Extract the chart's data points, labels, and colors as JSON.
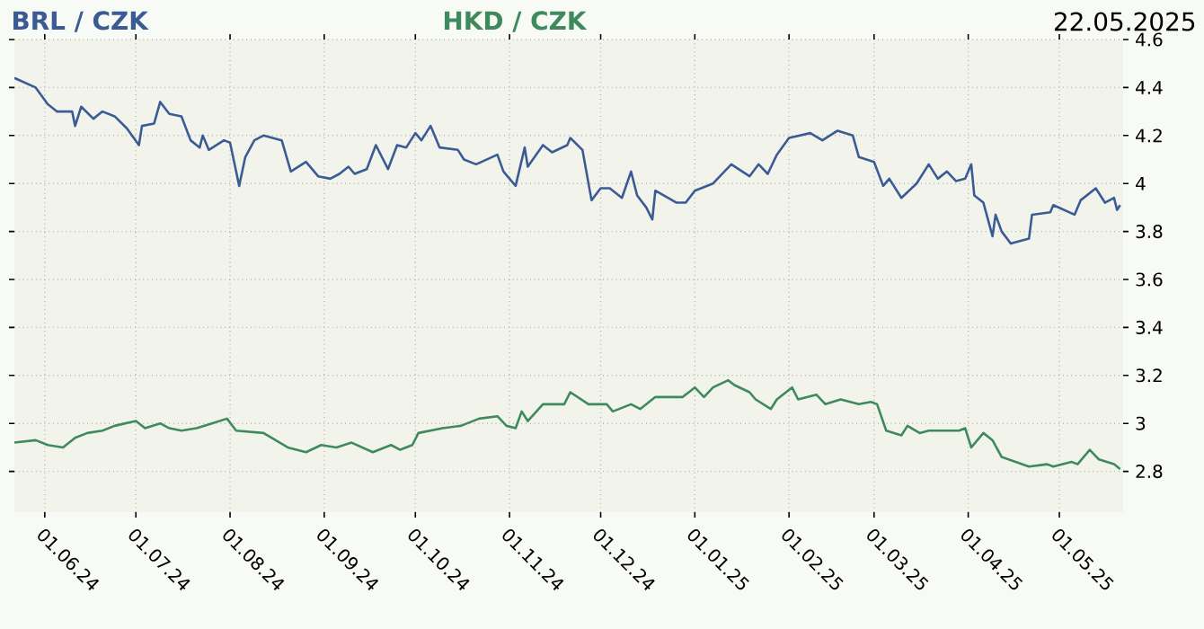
{
  "chart_data": {
    "type": "line",
    "annotations": [
      "22.05.2025"
    ],
    "legend": "top",
    "grid": true,
    "ylim": [
      2.63,
      4.6
    ],
    "yticks": [
      2.8,
      3,
      3.2,
      3.4,
      3.6,
      3.8,
      4,
      4.2,
      4.4,
      4.6
    ],
    "xlim": [
      "2024-05-22",
      "2025-05-22"
    ],
    "xticks": [
      {
        "value": "2024-06-01",
        "label": "01.06.24"
      },
      {
        "value": "2024-07-01",
        "label": "01.07.24"
      },
      {
        "value": "2024-08-01",
        "label": "01.08.24"
      },
      {
        "value": "2024-09-01",
        "label": "01.09.24"
      },
      {
        "value": "2024-10-01",
        "label": "01.10.24"
      },
      {
        "value": "2024-11-01",
        "label": "01.11.24"
      },
      {
        "value": "2024-12-01",
        "label": "01.12.24"
      },
      {
        "value": "2025-01-01",
        "label": "01.01.25"
      },
      {
        "value": "2025-02-01",
        "label": "01.02.25"
      },
      {
        "value": "2025-03-01",
        "label": "01.03.25"
      },
      {
        "value": "2025-04-01",
        "label": "01.04.25"
      },
      {
        "value": "2025-05-01",
        "label": "01.05.25"
      }
    ],
    "series": [
      {
        "name": "BRL / CZK",
        "color": "#3b5b95",
        "x": [
          "2024-05-22",
          "2024-05-29",
          "2024-06-02",
          "2024-06-05",
          "2024-06-10",
          "2024-06-11",
          "2024-06-13",
          "2024-06-17",
          "2024-06-20",
          "2024-06-24",
          "2024-06-28",
          "2024-07-02",
          "2024-07-03",
          "2024-07-07",
          "2024-07-09",
          "2024-07-12",
          "2024-07-16",
          "2024-07-19",
          "2024-07-22",
          "2024-07-23",
          "2024-07-25",
          "2024-07-30",
          "2024-08-01",
          "2024-08-04",
          "2024-08-06",
          "2024-08-09",
          "2024-08-12",
          "2024-08-18",
          "2024-08-21",
          "2024-08-26",
          "2024-08-30",
          "2024-09-03",
          "2024-09-06",
          "2024-09-09",
          "2024-09-11",
          "2024-09-15",
          "2024-09-18",
          "2024-09-22",
          "2024-09-25",
          "2024-09-28",
          "2024-10-01",
          "2024-10-03",
          "2024-10-06",
          "2024-10-09",
          "2024-10-15",
          "2024-10-17",
          "2024-10-21",
          "2024-10-28",
          "2024-10-30",
          "2024-11-03",
          "2024-11-06",
          "2024-11-07",
          "2024-11-12",
          "2024-11-15",
          "2024-11-20",
          "2024-11-21",
          "2024-11-25",
          "2024-11-28",
          "2024-12-01",
          "2024-12-04",
          "2024-12-08",
          "2024-12-11",
          "2024-12-13",
          "2024-12-16",
          "2024-12-18",
          "2024-12-19",
          "2024-12-26",
          "2024-12-29",
          "2025-01-01",
          "2025-01-07",
          "2025-01-13",
          "2025-01-19",
          "2025-01-22",
          "2025-01-25",
          "2025-01-28",
          "2025-02-01",
          "2025-02-08",
          "2025-02-12",
          "2025-02-17",
          "2025-02-22",
          "2025-02-24",
          "2025-03-01",
          "2025-03-04",
          "2025-03-06",
          "2025-03-10",
          "2025-03-15",
          "2025-03-19",
          "2025-03-22",
          "2025-03-25",
          "2025-03-28",
          "2025-03-31",
          "2025-04-02",
          "2025-04-03",
          "2025-04-06",
          "2025-04-09",
          "2025-04-10",
          "2025-04-12",
          "2025-04-15",
          "2025-04-21",
          "2025-04-22",
          "2025-04-28",
          "2025-04-29",
          "2025-05-06",
          "2025-05-08",
          "2025-05-13",
          "2025-05-16",
          "2025-05-19",
          "2025-05-20",
          "2025-05-21"
        ],
        "values": [
          4.44,
          4.4,
          4.33,
          4.3,
          4.3,
          4.24,
          4.32,
          4.27,
          4.3,
          4.28,
          4.23,
          4.16,
          4.24,
          4.25,
          4.34,
          4.29,
          4.28,
          4.18,
          4.15,
          4.2,
          4.14,
          4.18,
          4.17,
          3.99,
          4.11,
          4.18,
          4.2,
          4.18,
          4.05,
          4.09,
          4.03,
          4.02,
          4.04,
          4.07,
          4.04,
          4.06,
          4.16,
          4.06,
          4.16,
          4.15,
          4.21,
          4.18,
          4.24,
          4.15,
          4.14,
          4.1,
          4.08,
          4.12,
          4.05,
          3.99,
          4.15,
          4.07,
          4.16,
          4.13,
          4.16,
          4.19,
          4.14,
          3.93,
          3.98,
          3.98,
          3.94,
          4.05,
          3.95,
          3.9,
          3.85,
          3.97,
          3.92,
          3.92,
          3.97,
          4.0,
          4.08,
          4.03,
          4.08,
          4.04,
          4.12,
          4.19,
          4.21,
          4.18,
          4.22,
          4.2,
          4.11,
          4.09,
          3.99,
          4.02,
          3.94,
          4.0,
          4.08,
          4.02,
          4.05,
          4.01,
          4.02,
          4.08,
          3.95,
          3.92,
          3.78,
          3.87,
          3.8,
          3.75,
          3.77,
          3.87,
          3.88,
          3.91,
          3.87,
          3.93,
          3.98,
          3.92,
          3.94,
          3.89,
          3.91
        ]
      },
      {
        "name": "HKD / CZK",
        "color": "#3f8a5c",
        "x": [
          "2024-05-22",
          "2024-05-29",
          "2024-06-02",
          "2024-06-07",
          "2024-06-11",
          "2024-06-15",
          "2024-06-20",
          "2024-06-24",
          "2024-07-01",
          "2024-07-04",
          "2024-07-09",
          "2024-07-12",
          "2024-07-16",
          "2024-07-21",
          "2024-07-26",
          "2024-07-31",
          "2024-08-03",
          "2024-08-12",
          "2024-08-20",
          "2024-08-26",
          "2024-08-31",
          "2024-09-05",
          "2024-09-10",
          "2024-09-17",
          "2024-09-23",
          "2024-09-26",
          "2024-09-30",
          "2024-10-02",
          "2024-10-10",
          "2024-10-16",
          "2024-10-22",
          "2024-10-28",
          "2024-10-31",
          "2024-11-03",
          "2024-11-05",
          "2024-11-07",
          "2024-11-12",
          "2024-11-19",
          "2024-11-21",
          "2024-11-27",
          "2024-12-03",
          "2024-12-05",
          "2024-12-11",
          "2024-12-14",
          "2024-12-19",
          "2024-12-28",
          "2025-01-01",
          "2025-01-04",
          "2025-01-07",
          "2025-01-12",
          "2025-01-14",
          "2025-01-19",
          "2025-01-21",
          "2025-01-26",
          "2025-01-28",
          "2025-02-02",
          "2025-02-04",
          "2025-02-10",
          "2025-02-13",
          "2025-02-18",
          "2025-02-24",
          "2025-02-28",
          "2025-03-02",
          "2025-03-05",
          "2025-03-10",
          "2025-03-12",
          "2025-03-16",
          "2025-03-19",
          "2025-03-25",
          "2025-03-29",
          "2025-03-31",
          "2025-04-02",
          "2025-04-06",
          "2025-04-09",
          "2025-04-12",
          "2025-04-21",
          "2025-04-27",
          "2025-04-29",
          "2025-05-05",
          "2025-05-07",
          "2025-05-11",
          "2025-05-14",
          "2025-05-19",
          "2025-05-21"
        ],
        "values": [
          2.92,
          2.93,
          2.91,
          2.9,
          2.94,
          2.96,
          2.97,
          2.99,
          3.01,
          2.98,
          3.0,
          2.98,
          2.97,
          2.98,
          3.0,
          3.02,
          2.97,
          2.96,
          2.9,
          2.88,
          2.91,
          2.9,
          2.92,
          2.88,
          2.91,
          2.89,
          2.91,
          2.96,
          2.98,
          2.99,
          3.02,
          3.03,
          2.99,
          2.98,
          3.05,
          3.01,
          3.08,
          3.08,
          3.13,
          3.08,
          3.08,
          3.05,
          3.08,
          3.06,
          3.11,
          3.11,
          3.15,
          3.11,
          3.15,
          3.18,
          3.16,
          3.13,
          3.1,
          3.06,
          3.1,
          3.15,
          3.1,
          3.12,
          3.08,
          3.1,
          3.08,
          3.09,
          3.08,
          2.97,
          2.95,
          2.99,
          2.96,
          2.97,
          2.97,
          2.97,
          2.98,
          2.9,
          2.96,
          2.93,
          2.86,
          2.82,
          2.83,
          2.82,
          2.84,
          2.83,
          2.89,
          2.85,
          2.83,
          2.81
        ]
      }
    ]
  }
}
